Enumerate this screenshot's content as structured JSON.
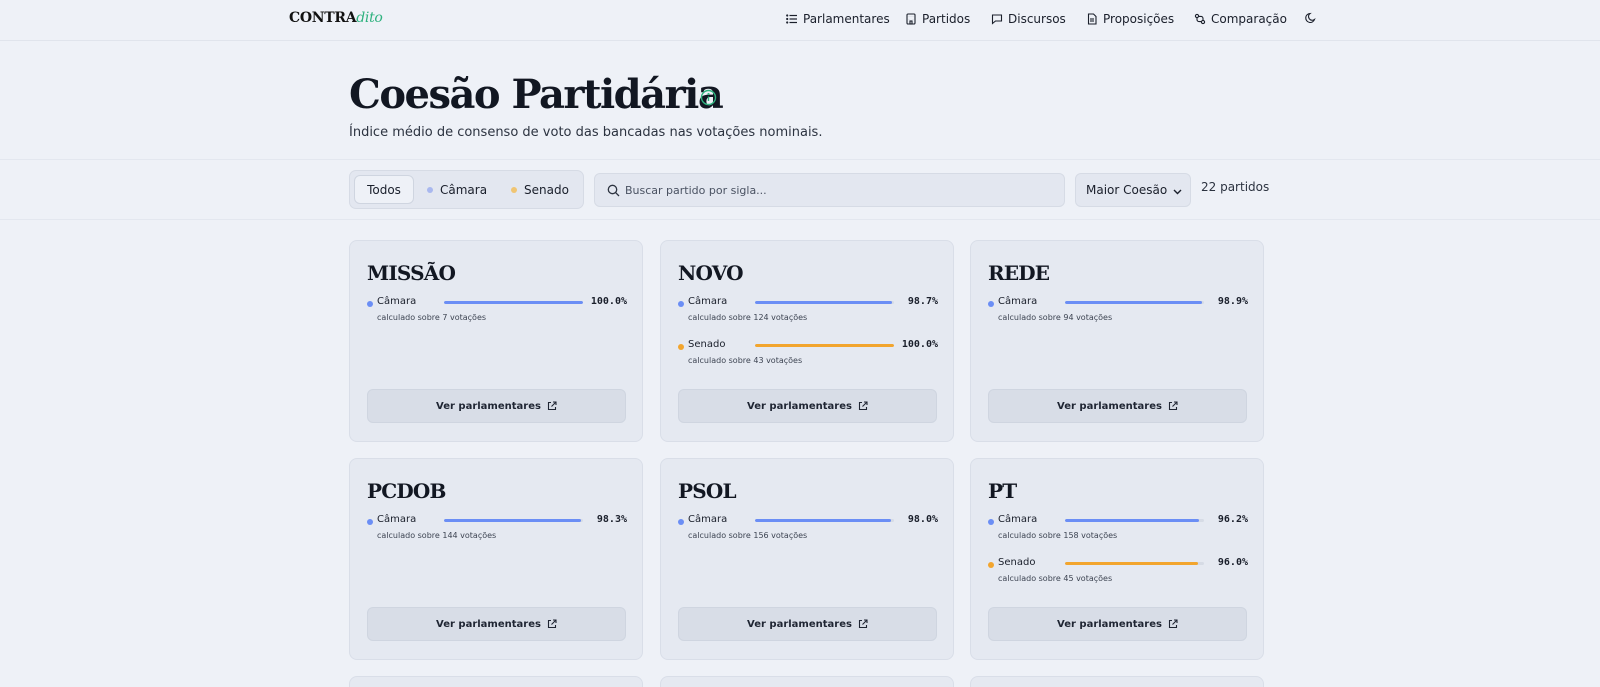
{
  "brand": {
    "main": "CONTRA",
    "accent": "dito"
  },
  "nav": {
    "items": [
      {
        "label": "Parlamentares",
        "icon": "list-icon"
      },
      {
        "label": "Partidos",
        "icon": "building-icon"
      },
      {
        "label": "Discursos",
        "icon": "message-square-icon"
      },
      {
        "label": "Proposições",
        "icon": "document-icon"
      },
      {
        "label": "Comparação",
        "icon": "compare-icon"
      }
    ],
    "theme_icon": "moon-icon"
  },
  "header": {
    "title": "Coesão Partidária",
    "subtitle": "Índice médio de consenso de voto das bancadas nas votações nominais."
  },
  "filters": {
    "segments": [
      "Todos",
      "Câmara",
      "Senado"
    ],
    "active_segment": "Todos",
    "search_placeholder": "Buscar partido por sigla...",
    "sort_selected": "Maior Coesão",
    "count_text": "22 partidos"
  },
  "colors": {
    "camara": "#6b8ef5",
    "senado": "#f2a52e",
    "accent": "#2fb27f"
  },
  "cards": [
    {
      "name": "MISSÃO",
      "button": "Ver parlamentares",
      "rows": [
        {
          "house": "Câmara",
          "value": "100.0%",
          "fraction": 1.0,
          "note": "calculado sobre 7 votações"
        }
      ]
    },
    {
      "name": "NOVO",
      "button": "Ver parlamentares",
      "rows": [
        {
          "house": "Câmara",
          "value": "98.7%",
          "fraction": 0.987,
          "note": "calculado sobre 124 votações"
        },
        {
          "house": "Senado",
          "value": "100.0%",
          "fraction": 1.0,
          "note": "calculado sobre 43 votações"
        }
      ]
    },
    {
      "name": "REDE",
      "button": "Ver parlamentares",
      "rows": [
        {
          "house": "Câmara",
          "value": "98.9%",
          "fraction": 0.989,
          "note": "calculado sobre 94 votações"
        }
      ]
    },
    {
      "name": "PCDOB",
      "button": "Ver parlamentares",
      "rows": [
        {
          "house": "Câmara",
          "value": "98.3%",
          "fraction": 0.983,
          "note": "calculado sobre 144 votações"
        }
      ]
    },
    {
      "name": "PSOL",
      "button": "Ver parlamentares",
      "rows": [
        {
          "house": "Câmara",
          "value": "98.0%",
          "fraction": 0.98,
          "note": "calculado sobre 156 votações"
        }
      ]
    },
    {
      "name": "PT",
      "button": "Ver parlamentares",
      "rows": [
        {
          "house": "Câmara",
          "value": "96.2%",
          "fraction": 0.962,
          "note": "calculado sobre 158 votações"
        },
        {
          "house": "Senado",
          "value": "96.0%",
          "fraction": 0.96,
          "note": "calculado sobre 45 votações"
        }
      ]
    }
  ]
}
